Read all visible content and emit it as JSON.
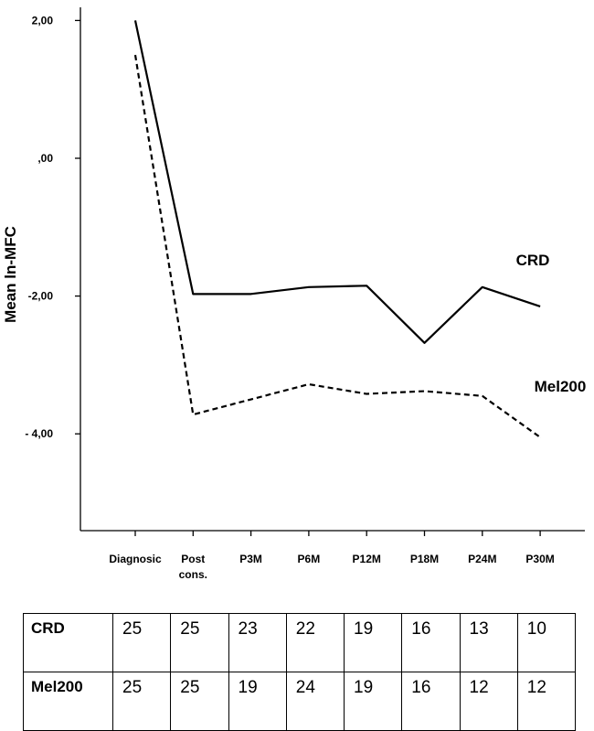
{
  "chart_data": {
    "type": "line",
    "title": "",
    "xlabel": "",
    "ylabel": "Mean  ln-MFC",
    "categories": [
      {
        "label": "Diagnosic",
        "label2": ""
      },
      {
        "label": "Post",
        "label2": "cons."
      },
      {
        "label": "P3M",
        "label2": ""
      },
      {
        "label": "P6M",
        "label2": ""
      },
      {
        "label": "P12M",
        "label2": ""
      },
      {
        "label": "P18M",
        "label2": ""
      },
      {
        "label": "P24M",
        "label2": ""
      },
      {
        "label": "P30M",
        "label2": ""
      }
    ],
    "yticks": [
      {
        "value": 2,
        "label": "2,00"
      },
      {
        "value": 0,
        "label": ",00"
      },
      {
        "value": -2,
        "label": "-2,00"
      },
      {
        "value": -4,
        "label": "- 4,00"
      }
    ],
    "ylim": [
      -5.4,
      2.2
    ],
    "grid": false,
    "series": [
      {
        "name": "CRD",
        "style": "solid",
        "values": [
          2.0,
          -1.97,
          -1.97,
          -1.87,
          -1.85,
          -2.68,
          -1.87,
          -2.15
        ]
      },
      {
        "name": "Mel200",
        "style": "dashed",
        "values": [
          1.5,
          -3.72,
          -3.5,
          -3.28,
          -3.42,
          -3.38,
          -3.45,
          -4.05
        ]
      }
    ]
  },
  "counts_table": {
    "rows": [
      {
        "label": "CRD",
        "values": [
          "25",
          "25",
          "23",
          "22",
          "19",
          "16",
          "13",
          "10"
        ]
      },
      {
        "label": "Mel200",
        "values": [
          "25",
          "25",
          "19",
          "24",
          "19",
          "16",
          "12",
          "12"
        ]
      }
    ]
  }
}
